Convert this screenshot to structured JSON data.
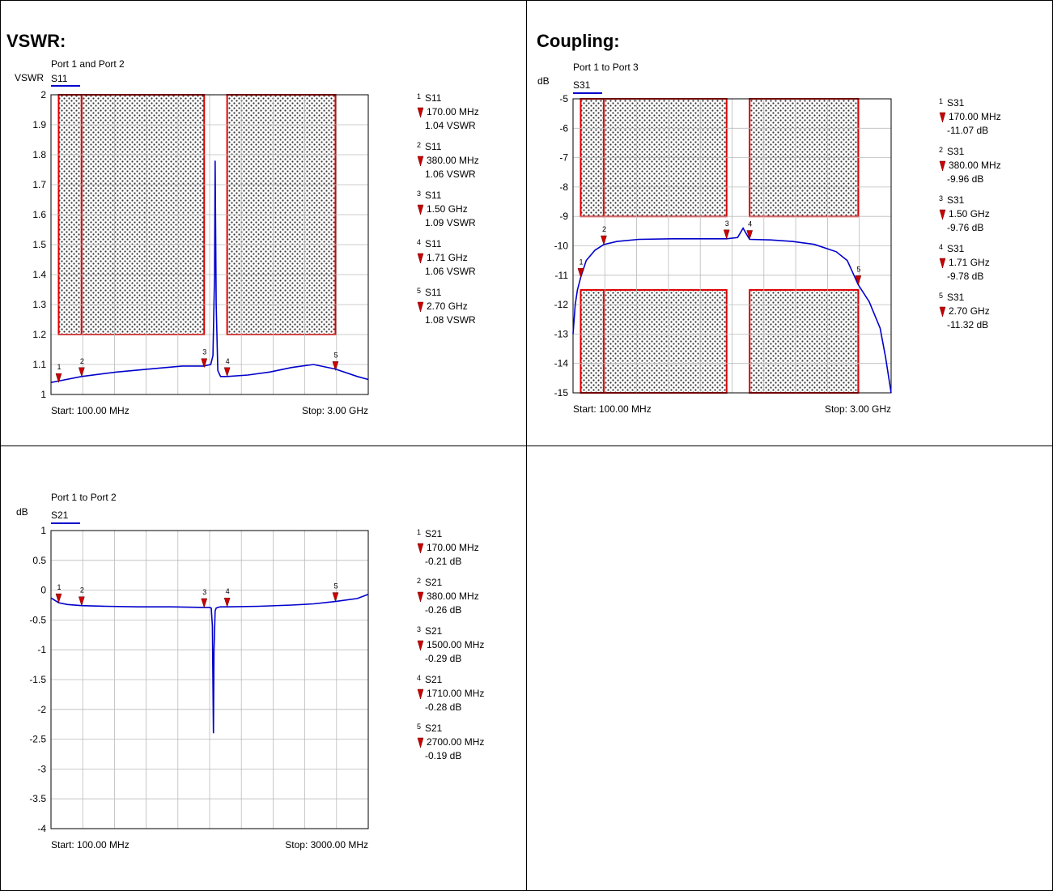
{
  "headings": {
    "vswr": "VSWR:",
    "coupling": "Coupling:"
  },
  "charts": [
    {
      "subtitle": "Port 1 and Port 2",
      "unit": "VSWR",
      "trace": "S11",
      "start": "Start: 100.00 MHz",
      "stop": "Stop: 3.00 GHz",
      "yticks": [
        "2",
        "1.9",
        "1.8",
        "1.7",
        "1.6",
        "1.5",
        "1.4",
        "1.3",
        "1.2",
        "1.1",
        "1"
      ],
      "markers": [
        {
          "num": "1",
          "trace": "S11",
          "freq": "170.00 MHz",
          "value": "1.04 VSWR"
        },
        {
          "num": "2",
          "trace": "S11",
          "freq": "380.00 MHz",
          "value": "1.06 VSWR"
        },
        {
          "num": "3",
          "trace": "S11",
          "freq": "1.50 GHz",
          "value": "1.09 VSWR"
        },
        {
          "num": "4",
          "trace": "S11",
          "freq": "1.71 GHz",
          "value": "1.06 VSWR"
        },
        {
          "num": "5",
          "trace": "S11",
          "freq": "2.70 GHz",
          "value": "1.08 VSWR"
        }
      ]
    },
    {
      "subtitle": "Port 1 to Port 3",
      "unit": "dB",
      "trace": "S31",
      "start": "Start: 100.00 MHz",
      "stop": "Stop: 3.00 GHz",
      "yticks": [
        "-5",
        "-6",
        "-7",
        "-8",
        "-9",
        "-10",
        "-11",
        "-12",
        "-13",
        "-14",
        "-15"
      ],
      "markers": [
        {
          "num": "1",
          "trace": "S31",
          "freq": "170.00 MHz",
          "value": "-11.07 dB"
        },
        {
          "num": "2",
          "trace": "S31",
          "freq": "380.00 MHz",
          "value": "-9.96 dB"
        },
        {
          "num": "3",
          "trace": "S31",
          "freq": "1.50 GHz",
          "value": "-9.76 dB"
        },
        {
          "num": "4",
          "trace": "S31",
          "freq": "1.71 GHz",
          "value": "-9.78 dB"
        },
        {
          "num": "5",
          "trace": "S31",
          "freq": "2.70 GHz",
          "value": "-11.32 dB"
        }
      ]
    },
    {
      "subtitle": "Port 1 to Port 2",
      "unit": "dB",
      "trace": "S21",
      "start": "Start: 100.00 MHz",
      "stop": "Stop: 3000.00 MHz",
      "yticks": [
        "1",
        "0.5",
        "0",
        "-0.5",
        "-1",
        "-1.5",
        "-2",
        "-2.5",
        "-3",
        "-3.5",
        "-4"
      ],
      "markers": [
        {
          "num": "1",
          "trace": "S21",
          "freq": "170.00 MHz",
          "value": "-0.21 dB"
        },
        {
          "num": "2",
          "trace": "S21",
          "freq": "380.00 MHz",
          "value": "-0.26 dB"
        },
        {
          "num": "3",
          "trace": "S21",
          "freq": "1500.00 MHz",
          "value": "-0.29 dB"
        },
        {
          "num": "4",
          "trace": "S21",
          "freq": "1710.00 MHz",
          "value": "-0.28 dB"
        },
        {
          "num": "5",
          "trace": "S21",
          "freq": "2700.00 MHz",
          "value": "-0.19 dB"
        }
      ]
    }
  ],
  "chart_data": [
    {
      "type": "line",
      "xlim": [
        0.1,
        3.0
      ],
      "ylim": [
        1,
        2
      ],
      "grid": true,
      "line_color": "#0000cc",
      "mask_color": "#e00000",
      "marker_color": "#cc0000",
      "marker_points": [
        [
          0.17,
          1.04
        ],
        [
          0.38,
          1.06
        ],
        [
          1.5,
          1.09
        ],
        [
          1.71,
          1.06
        ],
        [
          2.7,
          1.08
        ]
      ],
      "series": [
        {
          "name": "S11",
          "x": [
            0.1,
            0.17,
            0.38,
            0.7,
            1.0,
            1.3,
            1.5,
            1.56,
            1.58,
            1.595,
            1.6,
            1.61,
            1.625,
            1.65,
            1.71,
            1.9,
            2.1,
            2.3,
            2.5,
            2.7,
            2.9,
            3.0
          ],
          "y": [
            1.04,
            1.045,
            1.06,
            1.075,
            1.085,
            1.095,
            1.095,
            1.1,
            1.13,
            1.4,
            1.78,
            1.3,
            1.08,
            1.06,
            1.06,
            1.065,
            1.075,
            1.09,
            1.1,
            1.085,
            1.06,
            1.05
          ]
        }
      ],
      "limit_regions": [
        [
          0.17,
          0.38,
          1.2,
          2
        ],
        [
          0.38,
          1.5,
          1.2,
          2
        ],
        [
          1.71,
          2.7,
          1.2,
          2
        ]
      ]
    },
    {
      "type": "line",
      "xlim": [
        0.1,
        3.0
      ],
      "ylim": [
        -15,
        -5
      ],
      "grid": true,
      "line_color": "#0000cc",
      "mask_color": "#e00000",
      "marker_color": "#cc0000",
      "marker_points": [
        [
          0.17,
          -11.07
        ],
        [
          0.38,
          -9.96
        ],
        [
          1.5,
          -9.76
        ],
        [
          1.71,
          -9.78
        ],
        [
          2.7,
          -11.32
        ]
      ],
      "series": [
        {
          "name": "S31",
          "x": [
            0.1,
            0.12,
            0.14,
            0.17,
            0.22,
            0.3,
            0.38,
            0.5,
            0.7,
            1.0,
            1.3,
            1.5,
            1.6,
            1.65,
            1.7,
            1.71,
            1.9,
            2.1,
            2.3,
            2.5,
            2.6,
            2.7,
            2.8,
            2.9,
            2.95,
            3.0
          ],
          "y": [
            -13.0,
            -12.0,
            -11.5,
            -11.07,
            -10.5,
            -10.15,
            -9.96,
            -9.85,
            -9.78,
            -9.76,
            -9.76,
            -9.76,
            -9.72,
            -9.4,
            -9.72,
            -9.78,
            -9.8,
            -9.85,
            -9.95,
            -10.2,
            -10.5,
            -11.32,
            -11.9,
            -12.8,
            -13.8,
            -15.0
          ]
        }
      ],
      "limit_regions": [
        [
          0.17,
          0.38,
          -9,
          -5
        ],
        [
          0.38,
          1.5,
          -9,
          -5
        ],
        [
          1.71,
          2.7,
          -9,
          -5
        ],
        [
          0.17,
          0.38,
          -15,
          -11.5
        ],
        [
          0.38,
          1.5,
          -15,
          -11.5
        ],
        [
          1.71,
          2.7,
          -15,
          -11.5
        ]
      ]
    },
    {
      "type": "line",
      "xlim": [
        100,
        3000
      ],
      "ylim": [
        -4,
        1
      ],
      "grid": true,
      "line_color": "#0000cc",
      "marker_color": "#cc0000",
      "marker_points": [
        [
          170,
          -0.21
        ],
        [
          380,
          -0.26
        ],
        [
          1500,
          -0.29
        ],
        [
          1710,
          -0.28
        ],
        [
          2700,
          -0.19
        ]
      ],
      "series": [
        {
          "name": "S21",
          "x": [
            100,
            170,
            250,
            380,
            600,
            900,
            1200,
            1500,
            1550,
            1565,
            1575,
            1585,
            1590,
            1600,
            1610,
            1625,
            1650,
            1710,
            2000,
            2300,
            2500,
            2700,
            2900,
            3000
          ],
          "y": [
            -0.13,
            -0.21,
            -0.24,
            -0.26,
            -0.27,
            -0.28,
            -0.28,
            -0.29,
            -0.29,
            -0.3,
            -0.6,
            -2.4,
            -1.0,
            -0.35,
            -0.3,
            -0.29,
            -0.28,
            -0.28,
            -0.27,
            -0.25,
            -0.23,
            -0.19,
            -0.14,
            -0.07
          ]
        }
      ]
    }
  ]
}
